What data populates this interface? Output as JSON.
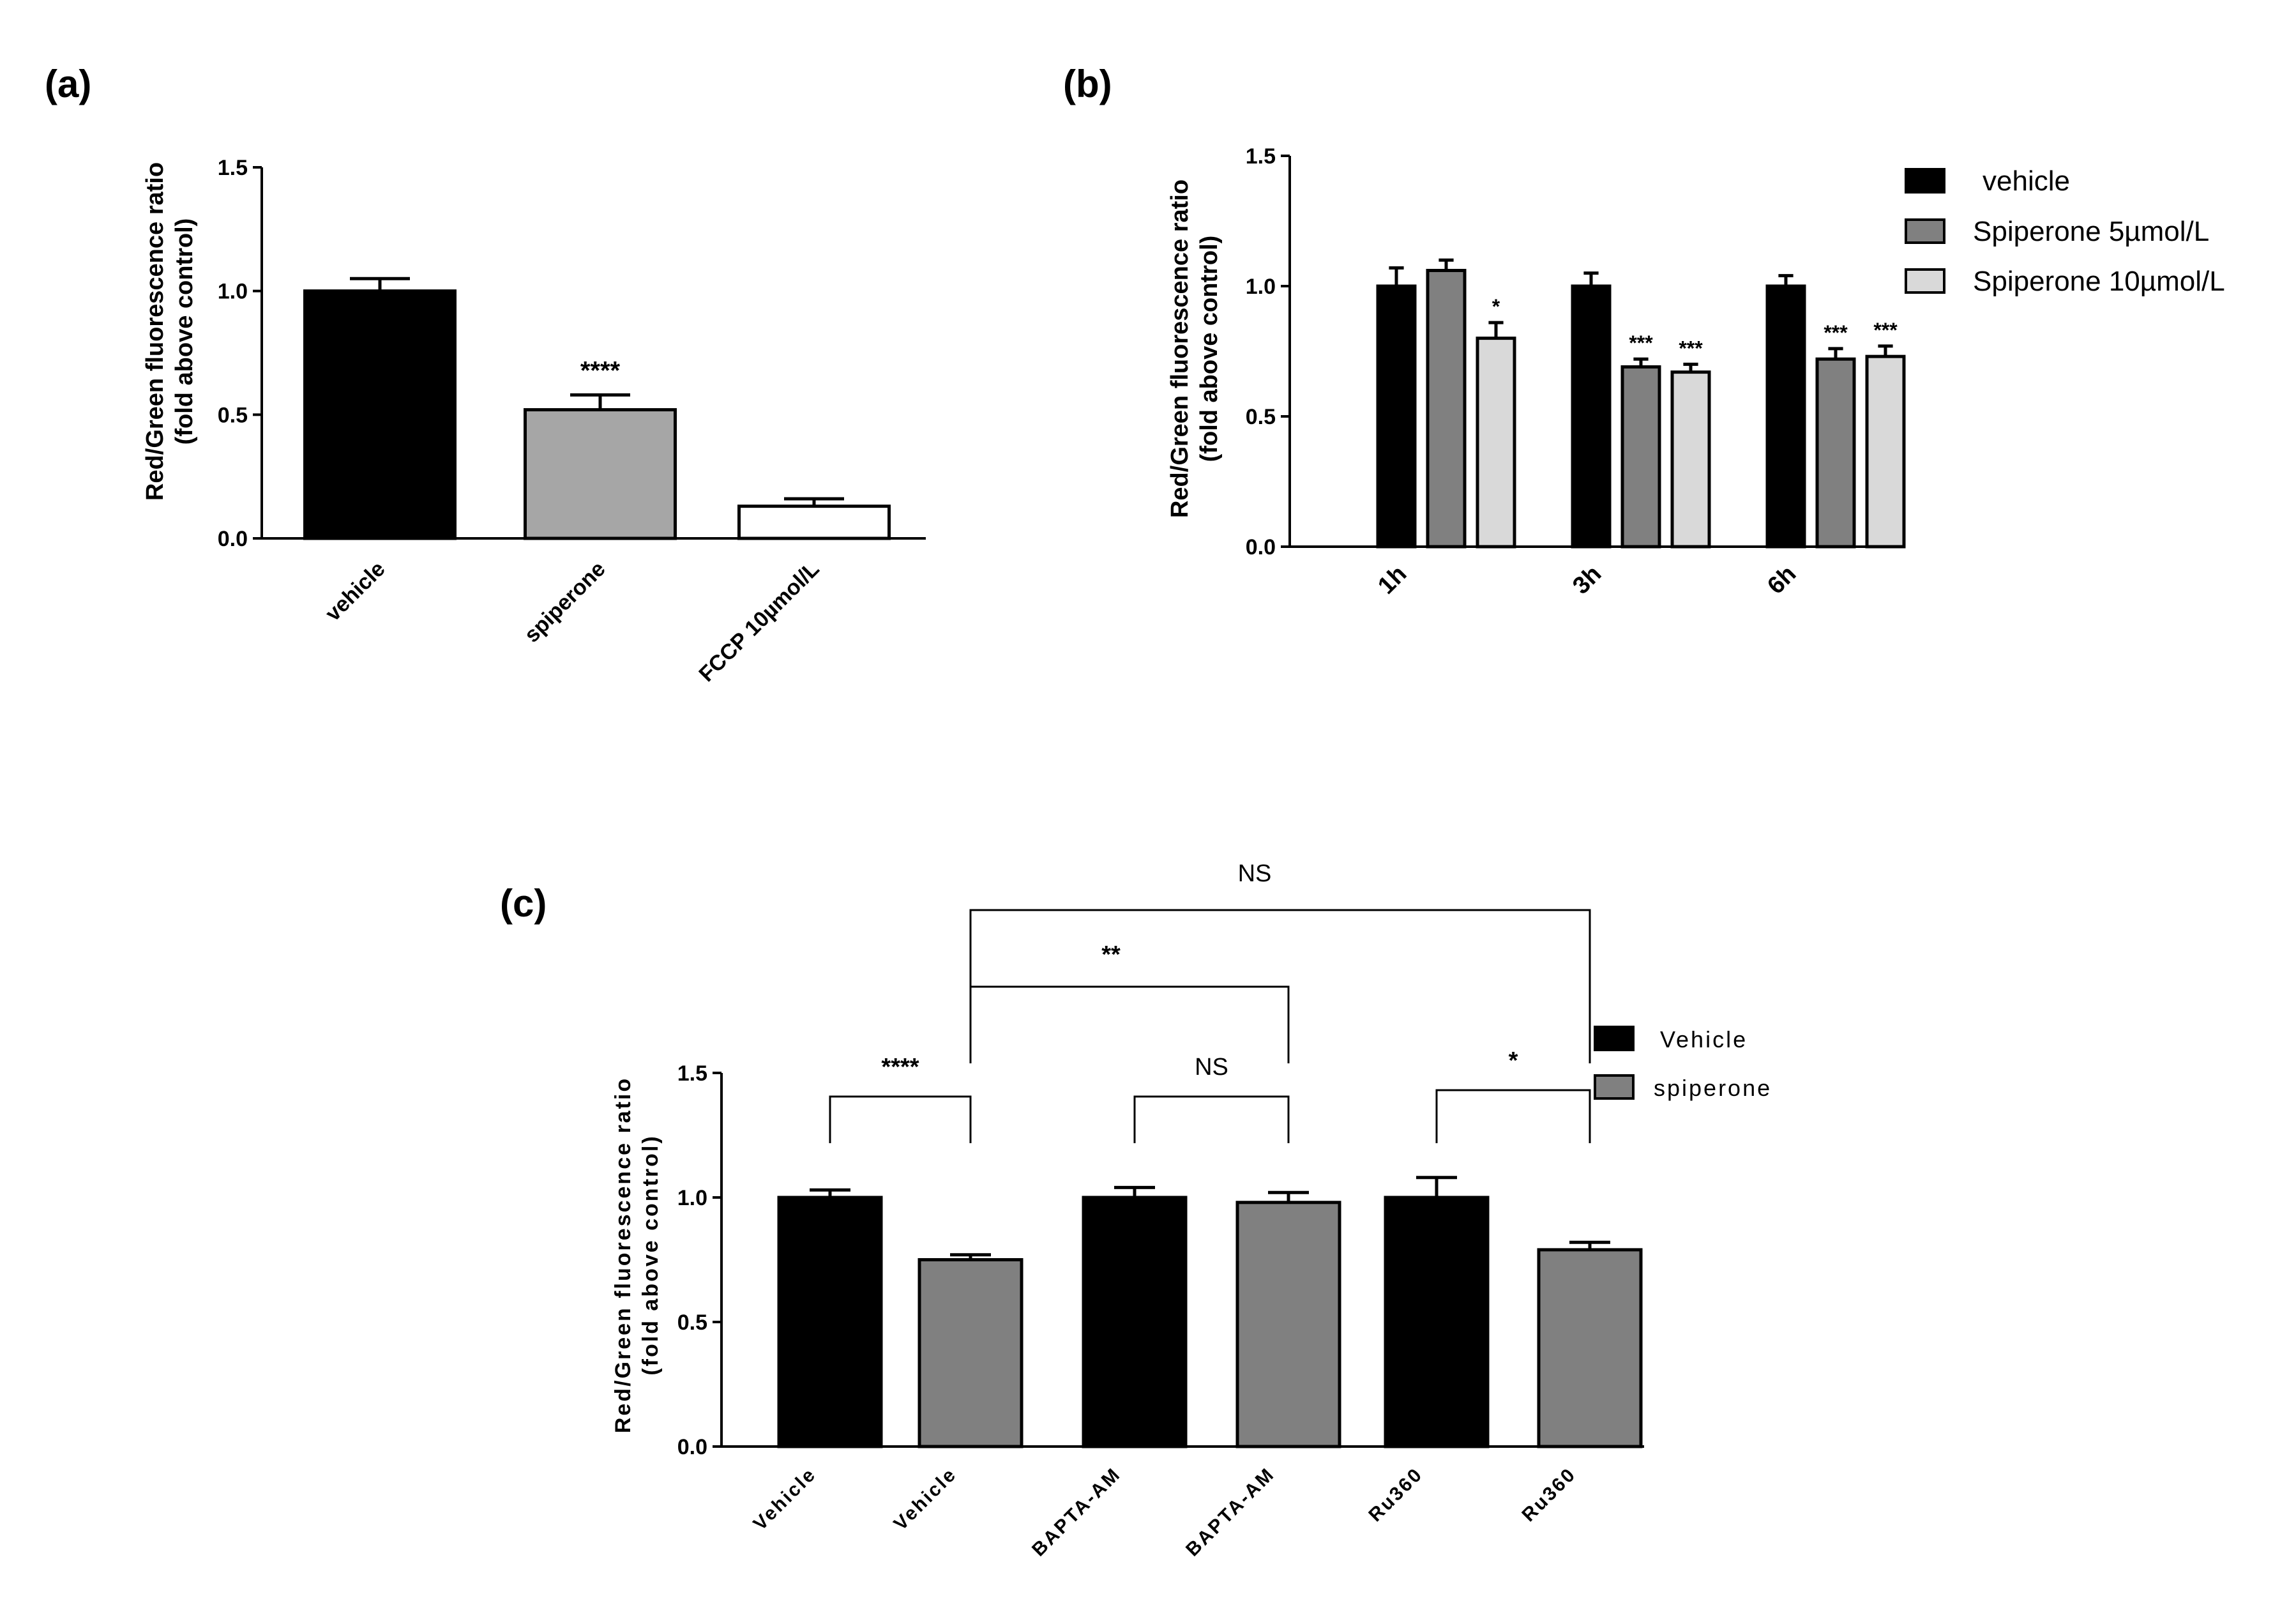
{
  "colors": {
    "black": "#000000",
    "gray_a": "#a6a6a6",
    "white": "#ffffff",
    "dark_gray_b": "#808080",
    "light_gray_b": "#d9d9d9",
    "gray_c": "#808080"
  },
  "chart_data": [
    {
      "panel": "(a)",
      "type": "bar",
      "ylabel_line1": "Red/Green fluorescence ratio",
      "ylabel_line2": "(fold above control)",
      "ylim": [
        0,
        1.5
      ],
      "yticks": [
        "0.0",
        "0.5",
        "1.0",
        "1.5"
      ],
      "categories": [
        "vehicle",
        "spiperone",
        "FCCP 10µmol/L"
      ],
      "values": [
        1.0,
        0.52,
        0.13
      ],
      "errors": [
        0.05,
        0.06,
        0.03
      ],
      "annotations": [
        "",
        "****",
        ""
      ]
    },
    {
      "panel": "(b)",
      "type": "bar",
      "ylabel_line1": "Red/Green fluorescence ratio",
      "ylabel_line2": "(fold above control)",
      "ylim": [
        0,
        1.5
      ],
      "yticks": [
        "0.0",
        "0.5",
        "1.0",
        "1.5"
      ],
      "categories": [
        "1h",
        "3h",
        "6h"
      ],
      "series": [
        {
          "name": "vehicle",
          "values": [
            1.0,
            1.0,
            1.0
          ],
          "errors": [
            0.07,
            0.05,
            0.04
          ],
          "annotations": [
            "",
            "",
            ""
          ]
        },
        {
          "name": "Spiperone 5µmol/L",
          "values": [
            1.06,
            0.69,
            0.72
          ],
          "errors": [
            0.04,
            0.03,
            0.04
          ],
          "annotations": [
            "",
            "***",
            "***"
          ]
        },
        {
          "name": "Spiperone 10µmol/L",
          "values": [
            0.8,
            0.67,
            0.73
          ],
          "errors": [
            0.06,
            0.03,
            0.04
          ],
          "annotations": [
            "*",
            "***",
            "***"
          ]
        }
      ],
      "legend": [
        "vehicle",
        "Spiperone 5µmol/L",
        "Spiperone 10µmol/L"
      ]
    },
    {
      "panel": "(c)",
      "type": "bar",
      "ylabel_line1": "Red/Green fluorescence ratio",
      "ylabel_line2": "(fold above control)",
      "ylim": [
        0,
        1.5
      ],
      "yticks": [
        "0.0",
        "0.5",
        "1.0",
        "1.5"
      ],
      "categories": [
        "Vehicle",
        "Vehicle",
        "BAPTA-AM",
        "BAPTA-AM",
        "Ru360",
        "Ru360"
      ],
      "groups": [
        "Vehicle",
        "spiperone",
        "Vehicle",
        "spiperone",
        "Vehicle",
        "spiperone"
      ],
      "values": [
        1.0,
        0.75,
        1.0,
        0.98,
        1.0,
        0.79
      ],
      "errors": [
        0.03,
        0.02,
        0.04,
        0.04,
        0.08,
        0.03
      ],
      "legend": [
        "Vehicle",
        "spiperone"
      ],
      "comparisons": [
        {
          "from": 0,
          "to": 1,
          "label": "****"
        },
        {
          "from": 2,
          "to": 3,
          "label": "NS"
        },
        {
          "from": 4,
          "to": 5,
          "label": "*"
        },
        {
          "from": 1,
          "to": 3,
          "label": "**"
        },
        {
          "from": 1,
          "to": 5,
          "label": "NS"
        }
      ]
    }
  ]
}
